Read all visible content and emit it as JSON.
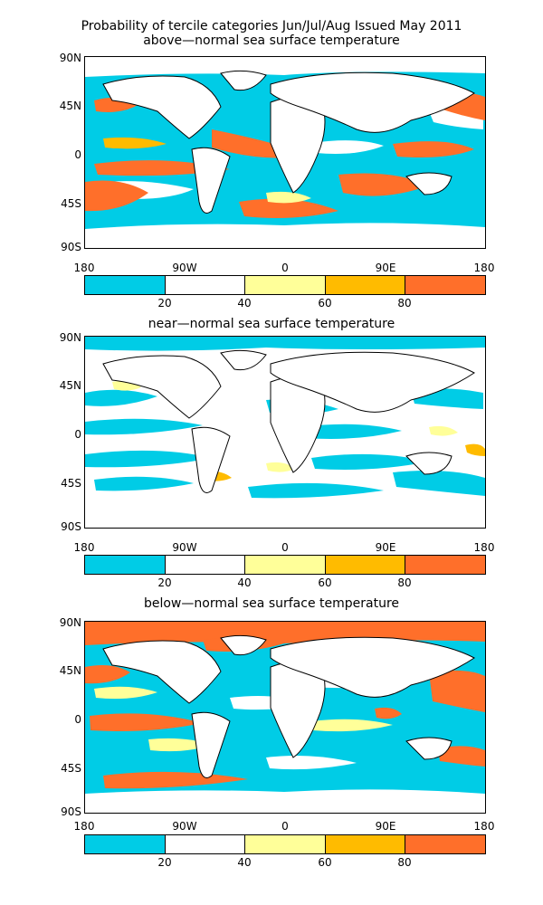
{
  "header": {
    "line1": "Probability of tercile categories Jun/Jul/Aug Issued May 2011"
  },
  "panels": [
    {
      "id": "above",
      "title": "above—normal sea surface temperature"
    },
    {
      "id": "near",
      "title": "near—normal sea surface temperature"
    },
    {
      "id": "below",
      "title": "below—normal sea surface temperature"
    }
  ],
  "axes": {
    "lat_labels": [
      "90N",
      "45N",
      "0",
      "45S",
      "90S"
    ],
    "lon_labels": [
      "180",
      "90W",
      "0",
      "90E",
      "180"
    ]
  },
  "colorbar": {
    "labels": [
      "20",
      "40",
      "60",
      "80"
    ],
    "colors": [
      "#00cce6",
      "#ffffff",
      "#ffff99",
      "#ffbb00",
      "#ff6f2a"
    ]
  },
  "colors": {
    "land": "#ffffff",
    "coast": "#000000"
  }
}
